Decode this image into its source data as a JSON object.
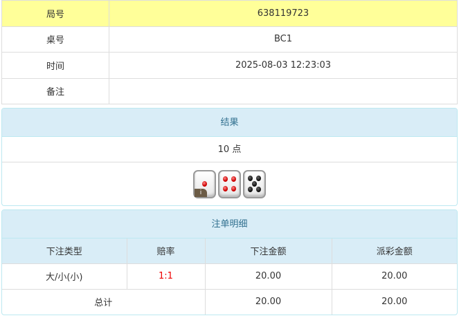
{
  "info": {
    "rows": [
      {
        "label": "局号",
        "value": "638119723"
      },
      {
        "label": "桌号",
        "value": "BC1"
      },
      {
        "label": "时间",
        "value": "2025-08-03 12:23:03"
      },
      {
        "label": "备注",
        "value": ""
      }
    ]
  },
  "result": {
    "title": "结果",
    "points": "10 点",
    "dice": [
      1,
      4,
      5
    ],
    "info_badge": "i",
    "pip_colors": {
      "red": "#cc0000",
      "black": "#111111"
    }
  },
  "bets": {
    "title": "注单明细",
    "headers": [
      "下注类型",
      "赔率",
      "下注金额",
      "派彩金额"
    ],
    "rows": [
      {
        "type": "大/小(小)",
        "odds": "1:1",
        "amount": "20.00",
        "payout": "20.00"
      }
    ],
    "total": {
      "label": "总计",
      "amount": "20.00",
      "payout": "20.00"
    }
  },
  "colors": {
    "highlight_row": "#ffff99",
    "panel_header": "#d9edf7",
    "odds": "#ee0000"
  }
}
